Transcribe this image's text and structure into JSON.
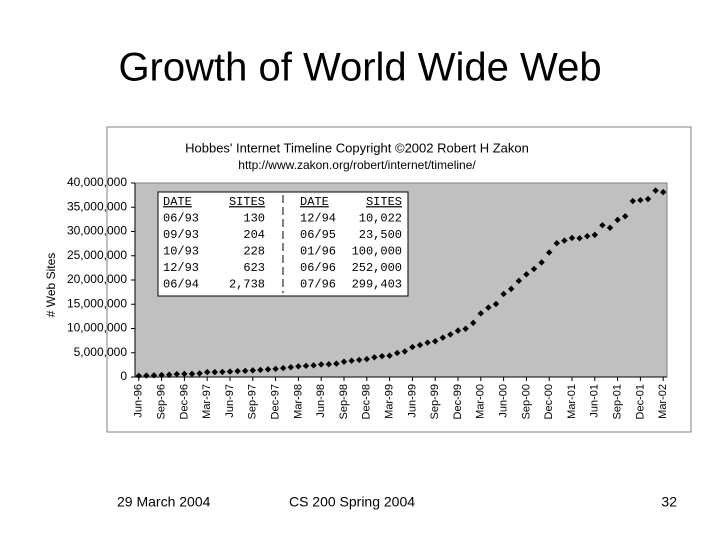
{
  "title": "Growth of World Wide Web",
  "footer": {
    "left": "29 March 2004",
    "center": "CS 200 Spring 2004",
    "right": "32"
  },
  "chart_data": {
    "type": "scatter",
    "title": "Hobbes' Internet Timeline Copyright ©2002 Robert H Zakon",
    "subtitle": "http://www.zakon.org/robert/internet/timeline/",
    "y_label": "# Web Sites",
    "color": "#000000",
    "background": "#c0c0c0",
    "categories": [
      "Jun-96",
      null,
      null,
      "Sep-96",
      null,
      null,
      "Dec-96",
      null,
      null,
      "Mar-97",
      null,
      null,
      "Jun-97",
      null,
      null,
      "Sep-97",
      null,
      null,
      "Dec-97",
      null,
      null,
      "Mar-98",
      null,
      null,
      "Jun-98",
      null,
      null,
      "Sep-98",
      null,
      null,
      "Dec-98",
      null,
      null,
      "Mar-99",
      null,
      null,
      "Jun-99",
      null,
      null,
      "Sep-99",
      null,
      null,
      "Dec-99",
      null,
      null,
      "Mar-00",
      null,
      null,
      "Jun-00",
      null,
      null,
      "Sep-00",
      null,
      null,
      "Dec-00",
      null,
      null,
      "Mar-01",
      null,
      null,
      "Jun-01",
      null,
      null,
      "Sep-01",
      null,
      null,
      "Dec-01",
      null,
      null,
      "Mar-02"
    ],
    "values": [
      252000,
      299403,
      342081,
      400000,
      462047,
      603367,
      648613,
      646162,
      739688,
      1002612,
      1002612,
      1044163,
      1117259,
      1203096,
      1269800,
      1364714,
      1466430,
      1570868,
      1681868,
      1834710,
      2022303,
      2201246,
      2299690,
      2409633,
      2594622,
      2636854,
      2760102,
      3156324,
      3358969,
      3518158,
      3689227,
      4062280,
      4301512,
      4389161,
      4958582,
      5271498,
      6177453,
      6598697,
      7078194,
      7370929,
      8115528,
      8781939,
      9560866,
      9950491,
      11161854,
      13106190,
      14322950,
      15049382,
      17119262,
      18169498,
      19823296,
      21166912,
      22282727,
      23626161,
      25675581,
      27585719,
      28125248,
      28669939,
      28611389,
      29031537,
      29302656,
      31299592,
      30775624,
      32398046,
      33135768,
      36276252,
      36458394,
      36689008,
      38444856,
      38118962
    ],
    "ylim": [
      0,
      40000000
    ],
    "yticks": [
      0,
      {
        "value": 5000000,
        "label": "5,000,000"
      },
      {
        "value": 10000000,
        "label": "10,000,000"
      },
      {
        "value": 15000000,
        "label": "15,000,000"
      },
      {
        "value": 20000000,
        "label": "20,000,000"
      },
      {
        "value": 25000000,
        "label": "25,000,000"
      },
      {
        "value": 30000000,
        "label": "30,000,000"
      },
      {
        "value": 35000000,
        "label": "35,000,000"
      },
      {
        "value": 40000000,
        "label": "40,000,000"
      }
    ],
    "annotation_table": {
      "header": [
        "DATE",
        "SITES",
        "DATE",
        "SITES"
      ],
      "rows": [
        [
          "06/93",
          "130",
          "12/94",
          "10,022"
        ],
        [
          "09/93",
          "204",
          "06/95",
          "23,500"
        ],
        [
          "10/93",
          "228",
          "01/96",
          "100,000"
        ],
        [
          "12/93",
          "623",
          "06/96",
          "252,000"
        ],
        [
          "06/94",
          "2,738",
          "07/96",
          "299,403"
        ]
      ]
    }
  }
}
